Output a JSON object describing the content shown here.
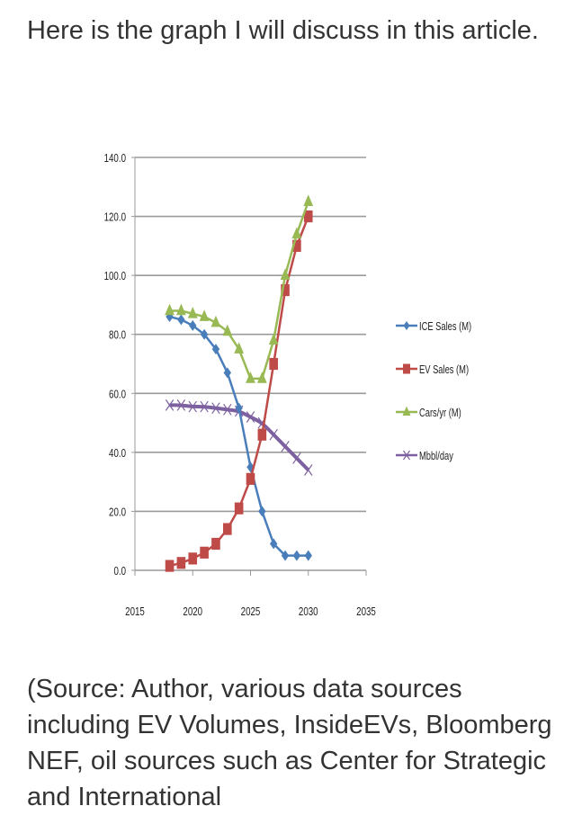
{
  "article": {
    "intro": "Here is the graph I will discuss in this article.",
    "source": "(Source: Author, various data sources including EV Volumes, InsideEVs, Bloomberg NEF, oil sources such as Center for Strategic and International"
  },
  "chart_data": {
    "type": "line",
    "title": "",
    "xlabel": "",
    "ylabel": "",
    "xlim": [
      2015,
      2035
    ],
    "ylim": [
      0,
      140
    ],
    "x_ticks": [
      "2015",
      "2020",
      "2025",
      "2030",
      "2035"
    ],
    "y_ticks": [
      "0.0",
      "20.0",
      "40.0",
      "60.0",
      "80.0",
      "100.0",
      "120.0",
      "140.0"
    ],
    "grid": "horizontal",
    "legend_position": "right",
    "x": [
      2018,
      2019,
      2020,
      2021,
      2022,
      2023,
      2024,
      2025,
      2026,
      2027,
      2028,
      2029,
      2030
    ],
    "series": [
      {
        "name": "ICE Sales (M)",
        "color": "#4a7ebb",
        "marker": "diamond",
        "values": [
          86,
          85,
          83,
          80,
          75,
          67,
          55,
          35,
          20,
          9,
          5,
          5,
          5
        ]
      },
      {
        "name": "EV Sales (M)",
        "color": "#be4b48",
        "marker": "square",
        "values": [
          1.5,
          2.5,
          4,
          6,
          9,
          14,
          21,
          31,
          46,
          70,
          95,
          110,
          120
        ]
      },
      {
        "name": "Cars/yr (M)",
        "color": "#98b954",
        "marker": "triangle",
        "values": [
          88,
          88,
          87,
          86,
          84,
          81,
          75,
          65,
          65,
          78,
          100,
          114,
          125
        ]
      },
      {
        "name": "Mbbl/day",
        "color": "#7d60a0",
        "marker": "x",
        "values": [
          56,
          56,
          55.5,
          55.5,
          55,
          54.5,
          54,
          52,
          50,
          46,
          42,
          38,
          34
        ]
      }
    ]
  }
}
